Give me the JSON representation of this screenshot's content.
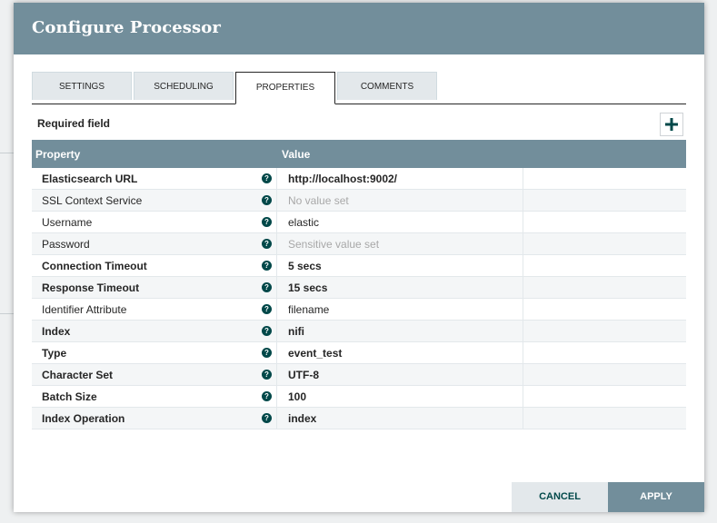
{
  "dialog": {
    "title": "Configure Processor"
  },
  "tabs": [
    {
      "label": "SETTINGS",
      "active": false
    },
    {
      "label": "SCHEDULING",
      "active": false
    },
    {
      "label": "PROPERTIES",
      "active": true
    },
    {
      "label": "COMMENTS",
      "active": false
    }
  ],
  "properties_panel": {
    "required_label": "Required field",
    "add_icon": "plus-icon",
    "columns": {
      "property": "Property",
      "value": "Value"
    },
    "help_icon": "question-circle-icon",
    "rows": [
      {
        "name": "Elasticsearch URL",
        "value": "http://localhost:9002/",
        "required": true,
        "placeholder": false
      },
      {
        "name": "SSL Context Service",
        "value": "No value set",
        "required": false,
        "placeholder": true
      },
      {
        "name": "Username",
        "value": "elastic",
        "required": false,
        "placeholder": false
      },
      {
        "name": "Password",
        "value": "Sensitive value set",
        "required": false,
        "placeholder": true
      },
      {
        "name": "Connection Timeout",
        "value": "5 secs",
        "required": true,
        "placeholder": false
      },
      {
        "name": "Response Timeout",
        "value": "15 secs",
        "required": true,
        "placeholder": false
      },
      {
        "name": "Identifier Attribute",
        "value": "filename",
        "required": false,
        "placeholder": false
      },
      {
        "name": "Index",
        "value": "nifi",
        "required": true,
        "placeholder": false
      },
      {
        "name": "Type",
        "value": "event_test",
        "required": true,
        "placeholder": false
      },
      {
        "name": "Character Set",
        "value": "UTF-8",
        "required": true,
        "placeholder": false
      },
      {
        "name": "Batch Size",
        "value": "100",
        "required": true,
        "placeholder": false
      },
      {
        "name": "Index Operation",
        "value": "index",
        "required": true,
        "placeholder": false
      }
    ]
  },
  "footer": {
    "cancel_label": "CANCEL",
    "apply_label": "APPLY"
  },
  "colors": {
    "header": "#728e9b",
    "accent": "#004849",
    "tab_inactive": "#e3e8eb"
  }
}
